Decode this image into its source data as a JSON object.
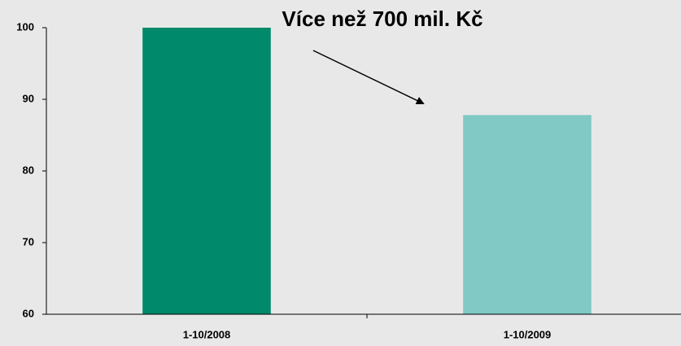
{
  "chart_data": {
    "type": "bar",
    "annotation": "Více než 700 mil. Kč",
    "categories": [
      "1-10/2008",
      "1-10/2009"
    ],
    "values": [
      100,
      87.8
    ],
    "colors": [
      "#00896b",
      "#80c9c4"
    ],
    "ylim": [
      60,
      100
    ],
    "yticks": [
      60,
      70,
      80,
      90,
      100
    ],
    "grid": false
  }
}
